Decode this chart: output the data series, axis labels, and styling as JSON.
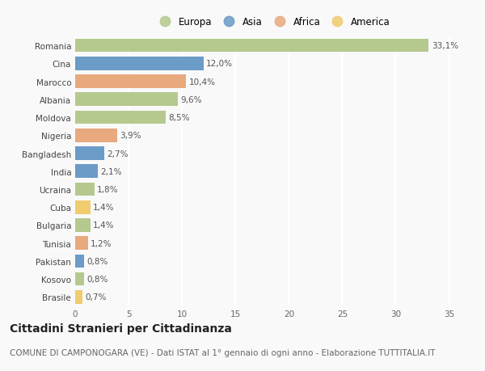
{
  "countries": [
    "Romania",
    "Cina",
    "Marocco",
    "Albania",
    "Moldova",
    "Nigeria",
    "Bangladesh",
    "India",
    "Ucraina",
    "Cuba",
    "Bulgaria",
    "Tunisia",
    "Pakistan",
    "Kosovo",
    "Brasile"
  ],
  "values": [
    33.1,
    12.0,
    10.4,
    9.6,
    8.5,
    3.9,
    2.7,
    2.1,
    1.8,
    1.4,
    1.4,
    1.2,
    0.8,
    0.8,
    0.7
  ],
  "labels": [
    "33,1%",
    "12,0%",
    "10,4%",
    "9,6%",
    "8,5%",
    "3,9%",
    "2,7%",
    "2,1%",
    "1,8%",
    "1,4%",
    "1,4%",
    "1,2%",
    "0,8%",
    "0,8%",
    "0,7%"
  ],
  "categories": [
    "Europa",
    "Asia",
    "Africa",
    "America"
  ],
  "bar_colors": [
    "#b5c98e",
    "#6b9bc7",
    "#e8a97e",
    "#b5c98e",
    "#b5c98e",
    "#e8a97e",
    "#6b9bc7",
    "#6b9bc7",
    "#b5c98e",
    "#f0cc6e",
    "#b5c98e",
    "#e8a97e",
    "#6b9bc7",
    "#b5c98e",
    "#f0cc6e"
  ],
  "legend_colors": [
    "#b5c98e",
    "#6b9bc7",
    "#e8a97e",
    "#f0cc6e"
  ],
  "title": "Cittadini Stranieri per Cittadinanza",
  "subtitle": "COMUNE DI CAMPONOGARA (VE) - Dati ISTAT al 1° gennaio di ogni anno - Elaborazione TUTTITALIA.IT",
  "xlim": [
    0,
    37
  ],
  "xticks": [
    0,
    5,
    10,
    15,
    20,
    25,
    30,
    35
  ],
  "background_color": "#f9f9f9",
  "grid_color": "#ffffff",
  "bar_height": 0.75,
  "title_fontsize": 10,
  "subtitle_fontsize": 7.5,
  "label_fontsize": 7.5,
  "tick_fontsize": 7.5,
  "legend_fontsize": 8.5
}
